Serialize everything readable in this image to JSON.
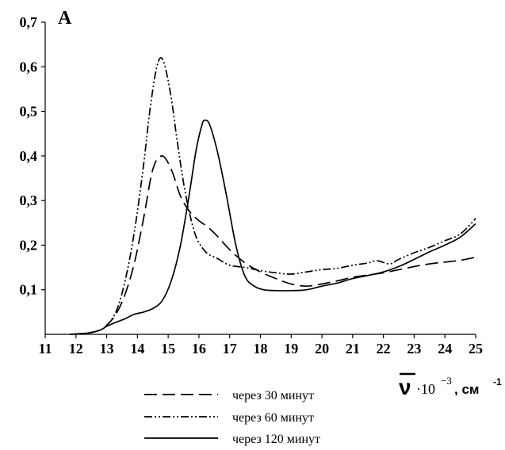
{
  "chart_data": {
    "type": "line",
    "panel_label": "A",
    "xlabel": {
      "symbol": "ν",
      "factor": "·10",
      "exponent": "−3",
      "unit": ", см",
      "unit_exponent": "-1"
    },
    "ylabel": "",
    "xlim": [
      11,
      25
    ],
    "ylim": [
      0,
      0.7
    ],
    "x_ticks": [
      11,
      12,
      13,
      14,
      15,
      16,
      17,
      18,
      19,
      20,
      21,
      22,
      23,
      24,
      25
    ],
    "y_ticks": [
      {
        "value": 0.1,
        "label": "0,1"
      },
      {
        "value": 0.2,
        "label": "0,2"
      },
      {
        "value": 0.3,
        "label": "0,3"
      },
      {
        "value": 0.4,
        "label": "0,4"
      },
      {
        "value": 0.5,
        "label": "0,5"
      },
      {
        "value": 0.6,
        "label": "0,6"
      },
      {
        "value": 0.7,
        "label": "0,7"
      }
    ],
    "grid": false,
    "legend_position": "bottom",
    "series": [
      {
        "name": "через 30 минут",
        "style": "dashed",
        "x": [
          11.8,
          12.4,
          12.8,
          13.0,
          13.3,
          13.6,
          13.9,
          14.2,
          14.5,
          14.8,
          15.1,
          15.4,
          15.7,
          16.0,
          16.3,
          16.6,
          17.0,
          17.5,
          18.0,
          18.5,
          19.0,
          19.5,
          20.0,
          20.5,
          21.0,
          21.5,
          22.0,
          22.5,
          23.0,
          23.5,
          24.0,
          24.5,
          25.0
        ],
        "y": [
          0.0,
          0.003,
          0.01,
          0.02,
          0.045,
          0.09,
          0.16,
          0.26,
          0.37,
          0.4,
          0.37,
          0.31,
          0.275,
          0.255,
          0.24,
          0.22,
          0.19,
          0.16,
          0.14,
          0.125,
          0.113,
          0.108,
          0.113,
          0.12,
          0.128,
          0.133,
          0.138,
          0.145,
          0.152,
          0.158,
          0.162,
          0.166,
          0.173
        ]
      },
      {
        "name": "чeрез 60 минут",
        "style": "dash-dot-dot",
        "x": [
          11.8,
          12.4,
          12.8,
          13.0,
          13.3,
          13.6,
          13.9,
          14.2,
          14.4,
          14.6,
          14.75,
          14.9,
          15.1,
          15.3,
          15.5,
          15.7,
          15.9,
          16.1,
          16.3,
          16.6,
          17.0,
          17.5,
          18.0,
          18.5,
          19.0,
          19.5,
          20.0,
          20.5,
          21.0,
          21.5,
          21.8,
          22.2,
          22.5,
          23.0,
          23.5,
          24.0,
          24.5,
          25.0
        ],
        "y": [
          0.0,
          0.003,
          0.01,
          0.02,
          0.05,
          0.12,
          0.23,
          0.38,
          0.5,
          0.59,
          0.62,
          0.6,
          0.53,
          0.43,
          0.34,
          0.27,
          0.22,
          0.195,
          0.18,
          0.17,
          0.155,
          0.15,
          0.143,
          0.138,
          0.135,
          0.14,
          0.145,
          0.148,
          0.155,
          0.16,
          0.165,
          0.158,
          0.168,
          0.183,
          0.195,
          0.21,
          0.225,
          0.26
        ]
      },
      {
        "name": "через 120 минут",
        "style": "solid",
        "x": [
          11.8,
          12.4,
          12.8,
          13.0,
          13.3,
          13.6,
          13.9,
          14.2,
          14.5,
          14.8,
          15.1,
          15.4,
          15.7,
          15.9,
          16.1,
          16.2,
          16.35,
          16.6,
          16.9,
          17.2,
          17.5,
          17.8,
          18.1,
          18.5,
          19.0,
          19.5,
          20.0,
          20.5,
          21.0,
          21.5,
          22.0,
          22.5,
          23.0,
          23.5,
          24.0,
          24.5,
          25.0
        ],
        "y": [
          0.0,
          0.003,
          0.01,
          0.018,
          0.027,
          0.035,
          0.045,
          0.05,
          0.058,
          0.075,
          0.12,
          0.2,
          0.32,
          0.41,
          0.47,
          0.48,
          0.47,
          0.41,
          0.31,
          0.2,
          0.13,
          0.108,
          0.1,
          0.098,
          0.098,
          0.1,
          0.108,
          0.115,
          0.125,
          0.132,
          0.14,
          0.152,
          0.168,
          0.185,
          0.2,
          0.218,
          0.248
        ]
      }
    ]
  }
}
